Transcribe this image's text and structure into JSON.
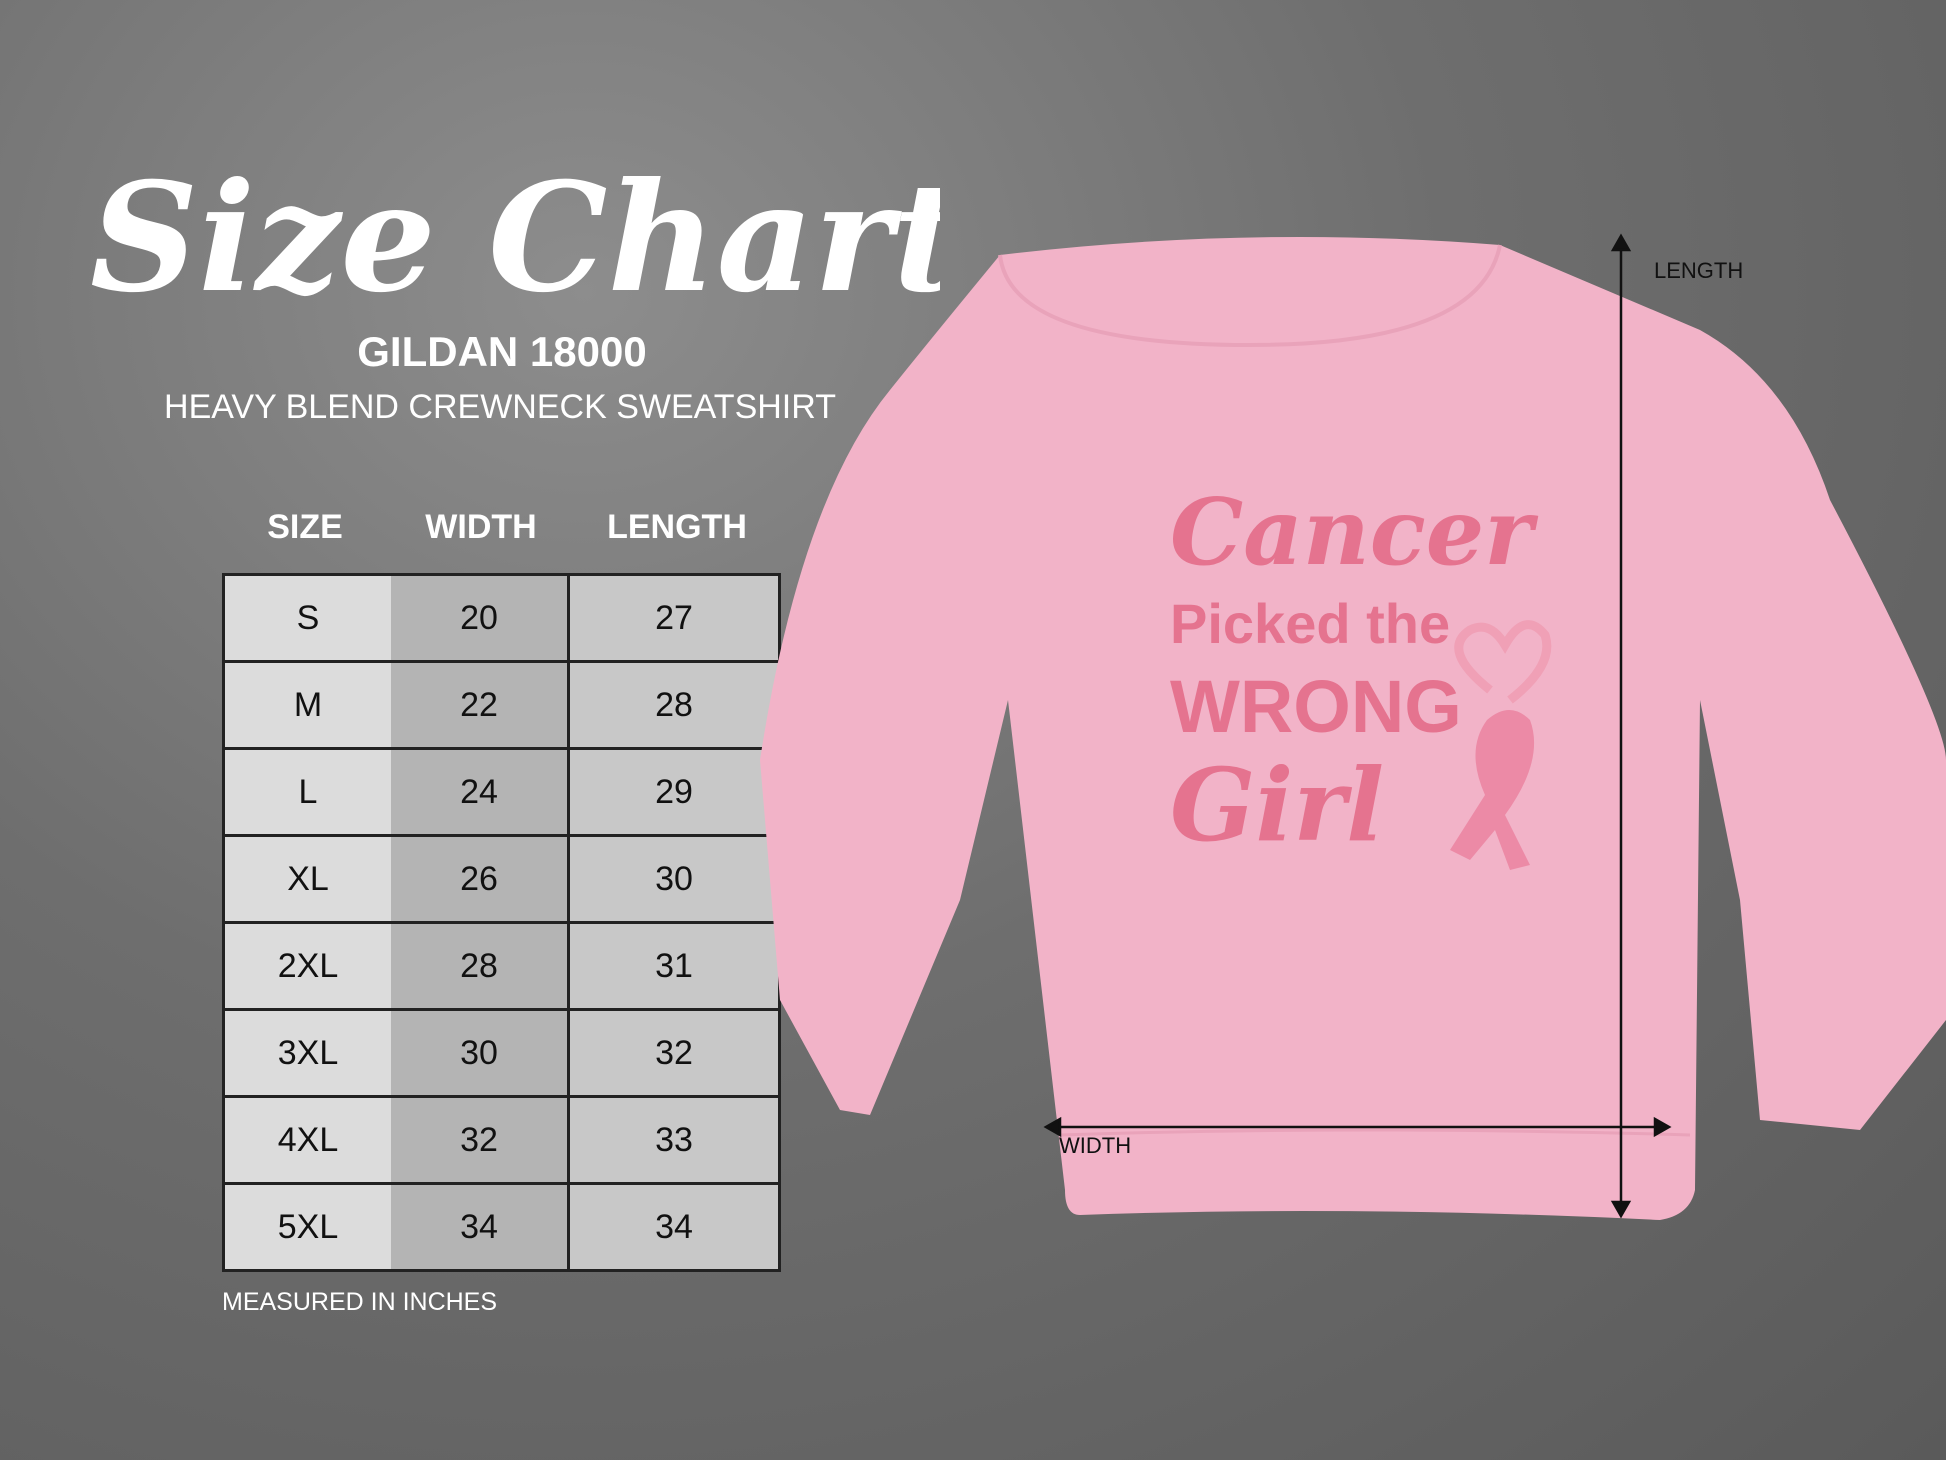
{
  "title": "Size Chart",
  "brand": "GILDAN 18000",
  "subtitle": "HEAVY BLEND CREWNECK SWEATSHIRT",
  "table": {
    "headers": [
      "SIZE",
      "WIDTH",
      "LENGTH"
    ],
    "rows": [
      [
        "S",
        "20",
        "27"
      ],
      [
        "M",
        "22",
        "28"
      ],
      [
        "L",
        "24",
        "29"
      ],
      [
        "XL",
        "26",
        "30"
      ],
      [
        "2XL",
        "28",
        "31"
      ],
      [
        "3XL",
        "30",
        "32"
      ],
      [
        "4XL",
        "32",
        "33"
      ],
      [
        "5XL",
        "34",
        "34"
      ]
    ]
  },
  "footnote": "MEASURED IN INCHES",
  "product": {
    "color": "#f2b3c8",
    "design_lines": [
      "Cancer",
      "Picked the",
      "WRONG",
      "Girl"
    ],
    "design_color": "#e5738f",
    "icons": [
      "heart-icon",
      "awareness-ribbon-icon"
    ],
    "length_label": "LENGTH",
    "width_label": "WIDTH"
  }
}
